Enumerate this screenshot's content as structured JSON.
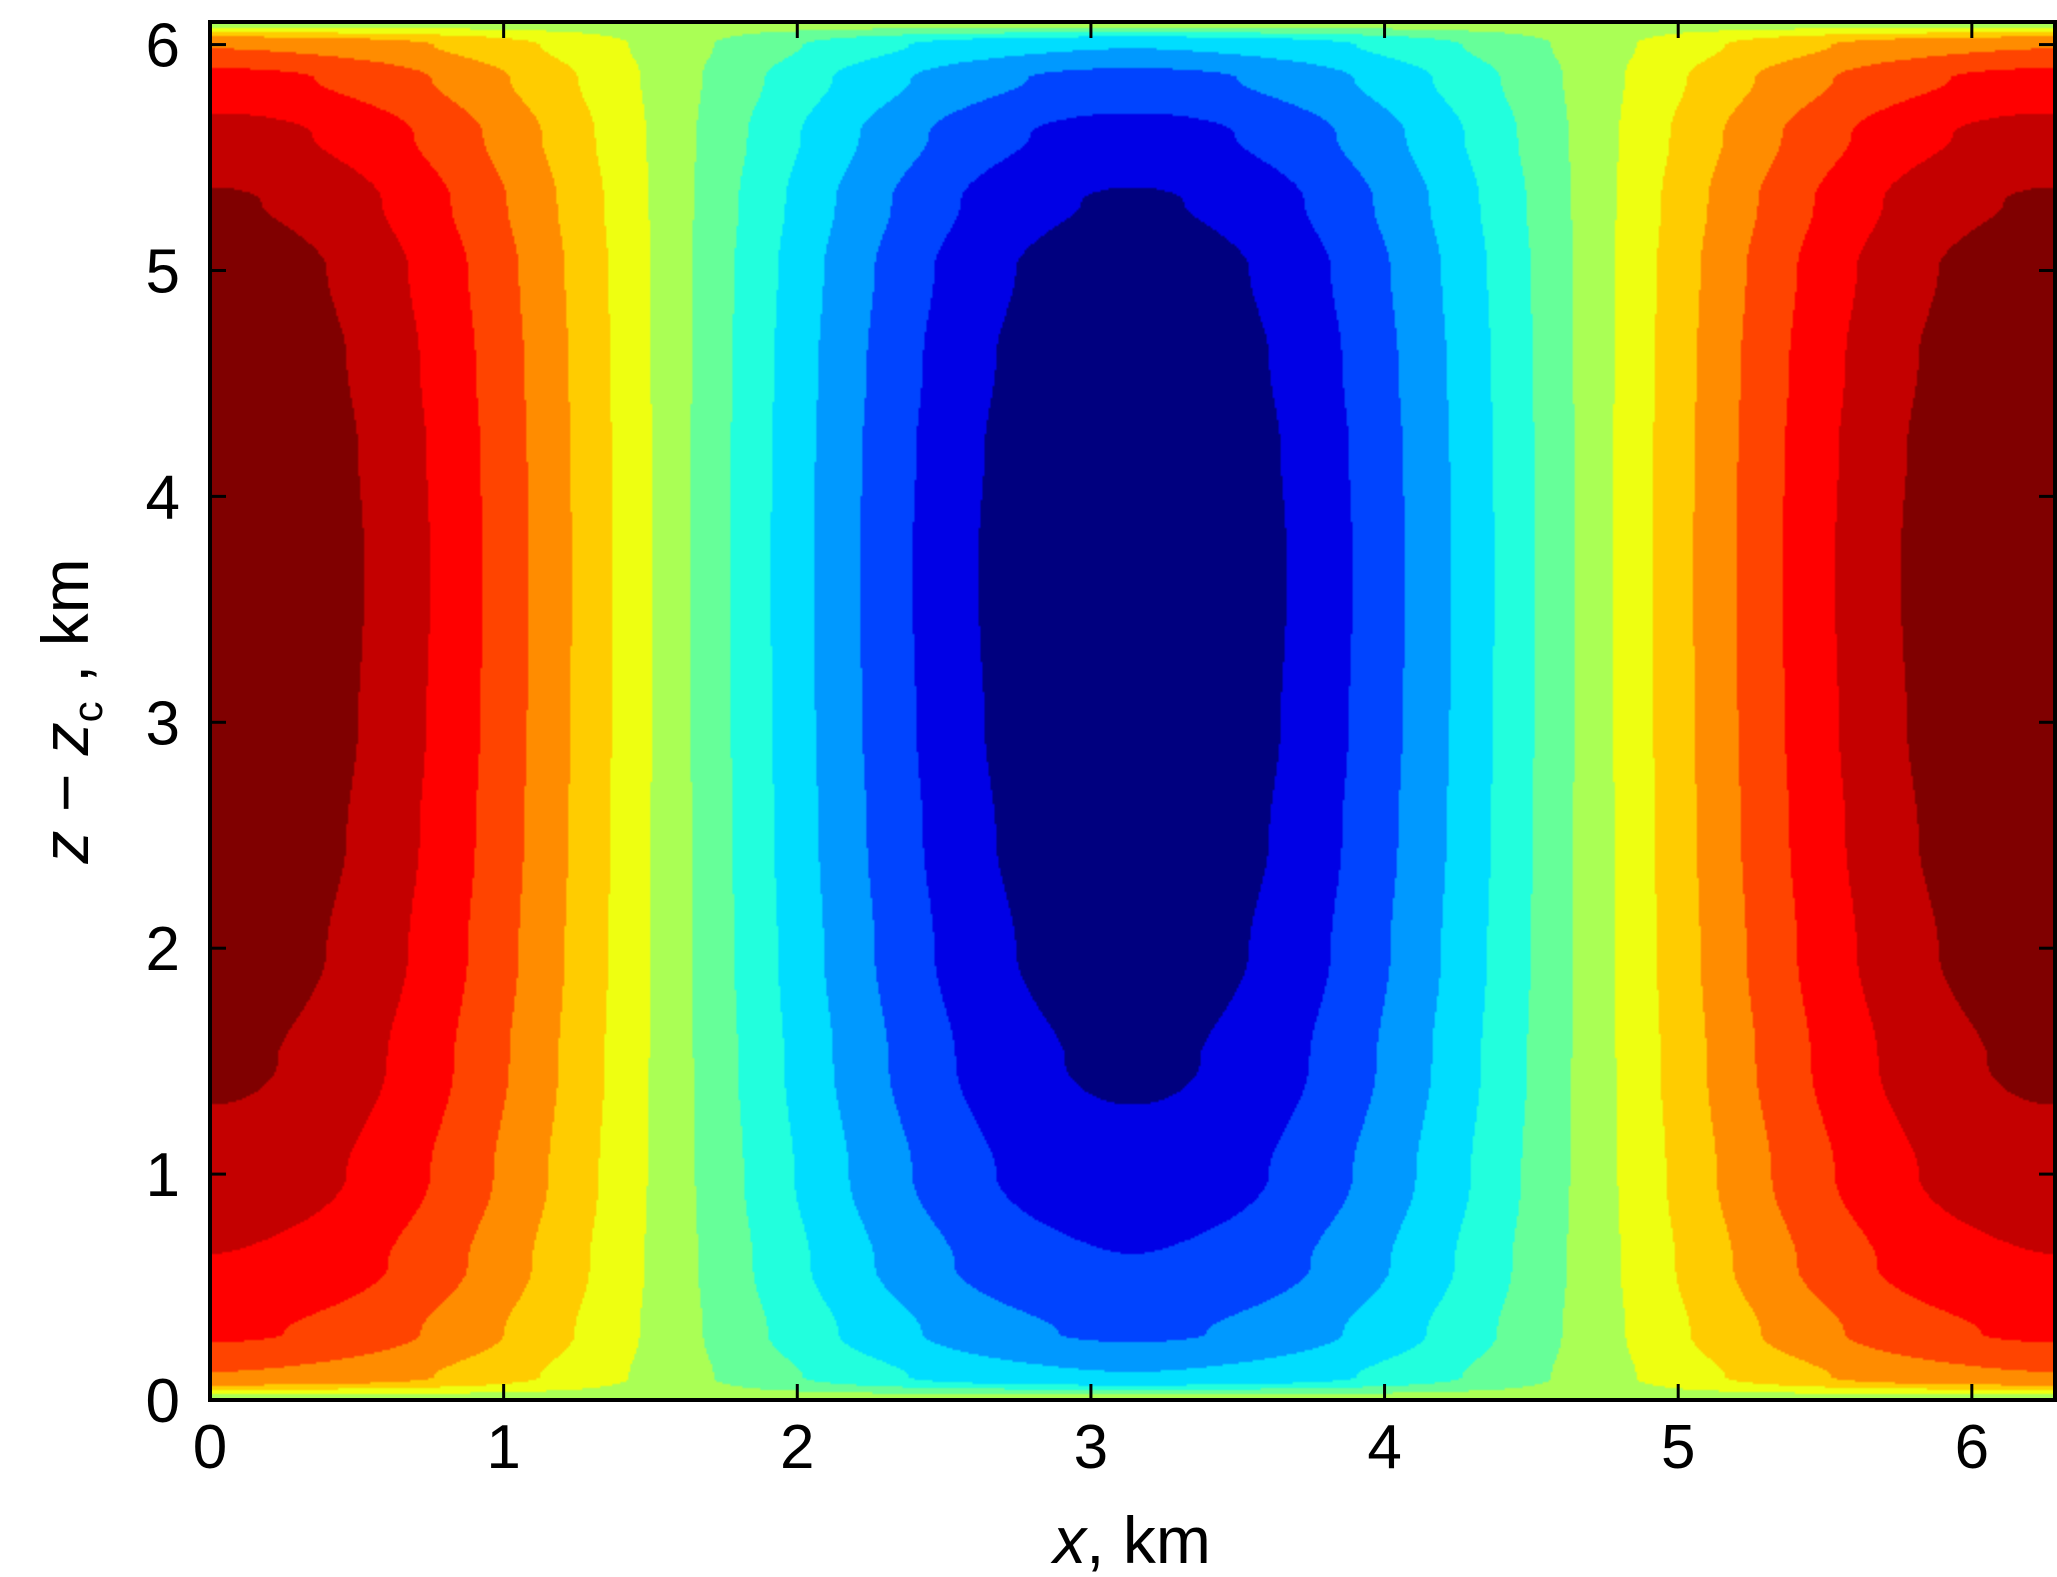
{
  "chart_data": {
    "type": "contour",
    "xlabel": {
      "var": "x",
      "unit": ", km"
    },
    "ylabel": {
      "var": "z",
      "minus": " − ",
      "var2": "z",
      "sub": "c",
      "unit": " , km"
    },
    "xlim": [
      0,
      6.2832
    ],
    "ylim": [
      0,
      6.1
    ],
    "x_ticks": [
      {
        "value": 0,
        "label": "0"
      },
      {
        "value": 1,
        "label": "1"
      },
      {
        "value": 2,
        "label": "2"
      },
      {
        "value": 3,
        "label": "3"
      },
      {
        "value": 4,
        "label": "4"
      },
      {
        "value": 5,
        "label": "5"
      },
      {
        "value": 6,
        "label": "6"
      }
    ],
    "y_ticks": [
      {
        "value": 0,
        "label": "0"
      },
      {
        "value": 1,
        "label": "1"
      },
      {
        "value": 2,
        "label": "2"
      },
      {
        "value": 3,
        "label": "3"
      },
      {
        "value": 4,
        "label": "4"
      },
      {
        "value": 5,
        "label": "5"
      },
      {
        "value": 6,
        "label": "6"
      }
    ],
    "field": {
      "form": "cos(x) * vertical_profile(z)",
      "x_period": 6.2832,
      "vertical_profile": {
        "z": [
          0,
          0.1,
          0.3,
          0.6,
          1.0,
          1.5,
          2.0,
          2.5,
          3.0,
          3.5,
          3.8,
          4.2,
          4.6,
          5.0,
          5.3,
          5.6,
          5.85,
          6.0,
          6.1
        ],
        "value": [
          0.0,
          0.46,
          0.62,
          0.73,
          0.82,
          0.89,
          0.94,
          0.97,
          0.99,
          1.0,
          1.0,
          0.99,
          0.97,
          0.94,
          0.88,
          0.78,
          0.64,
          0.46,
          0.0
        ]
      }
    },
    "levels": [
      -1.0,
      -0.875,
      -0.75,
      -0.625,
      -0.5,
      -0.375,
      -0.25,
      -0.125,
      0.0,
      0.125,
      0.25,
      0.375,
      0.5,
      0.625,
      0.75,
      0.875,
      1.0
    ],
    "colormap": "jet",
    "colors": [
      "#00007f",
      "#0000e6",
      "#0044ff",
      "#0099ff",
      "#00ddff",
      "#22ffdd",
      "#66ff99",
      "#aaff55",
      "#eeff11",
      "#ffcc00",
      "#ff8c00",
      "#ff4400",
      "#ff0000",
      "#c40000",
      "#800000"
    ]
  }
}
